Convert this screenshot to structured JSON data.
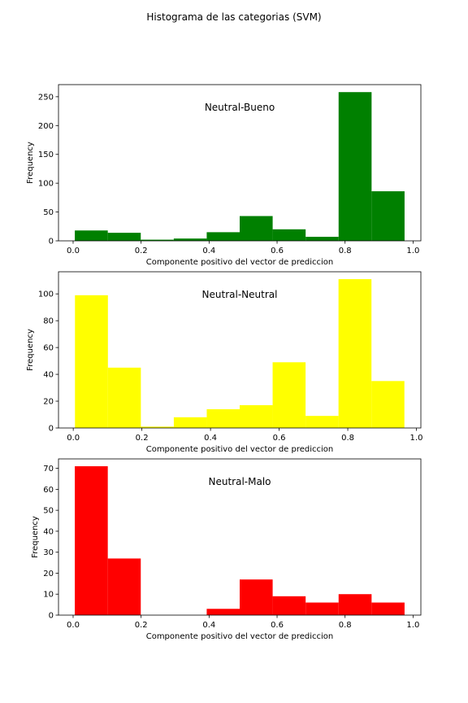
{
  "figure": {
    "suptitle": "Histograma de las categorias (SVM)"
  },
  "chart_data": [
    {
      "type": "bar",
      "title": "Neutral-Bueno",
      "xlabel": "Componente positivo del vector de prediccion",
      "ylabel": "Frequency",
      "color": "#008000",
      "bin_edges": [
        0.005,
        0.102,
        0.199,
        0.296,
        0.393,
        0.49,
        0.587,
        0.684,
        0.781,
        0.878,
        0.975
      ],
      "values": [
        18,
        14,
        2,
        4,
        15,
        43,
        20,
        7,
        258,
        86
      ],
      "xlim": [
        -0.043,
        1.023
      ],
      "ylim": [
        0,
        271
      ],
      "xticks": [
        0.0,
        0.2,
        0.4,
        0.6,
        0.8,
        1.0
      ],
      "xtick_labels": [
        "0.0",
        "0.2",
        "0.4",
        "0.6",
        "0.8",
        "1.0"
      ],
      "yticks": [
        0,
        50,
        100,
        150,
        200,
        250
      ],
      "ytick_labels": [
        "0",
        "50",
        "100",
        "150",
        "200",
        "250"
      ],
      "grid": false,
      "legend": "none"
    },
    {
      "type": "bar",
      "title": "Neutral-Neutral",
      "xlabel": "Componente positivo del vector de prediccion",
      "ylabel": "Frequency",
      "color": "#ffff00",
      "bin_edges": [
        0.005,
        0.101,
        0.197,
        0.293,
        0.389,
        0.485,
        0.581,
        0.677,
        0.773,
        0.869,
        0.965
      ],
      "values": [
        99,
        45,
        1,
        8,
        14,
        17,
        49,
        9,
        111,
        35
      ],
      "xlim": [
        -0.043,
        1.013
      ],
      "ylim": [
        0,
        116.5
      ],
      "xticks": [
        0.0,
        0.2,
        0.4,
        0.6,
        0.8,
        1.0
      ],
      "xtick_labels": [
        "0.0",
        "0.2",
        "0.4",
        "0.6",
        "0.8",
        "1.0"
      ],
      "yticks": [
        0,
        20,
        40,
        60,
        80,
        100
      ],
      "ytick_labels": [
        "0",
        "20",
        "40",
        "60",
        "80",
        "100"
      ],
      "grid": false,
      "legend": "none"
    },
    {
      "type": "bar",
      "title": "Neutral-Malo",
      "xlabel": "Componente positivo del vector de prediccion",
      "ylabel": "Frequency",
      "color": "#ff0000",
      "bin_edges": [
        0.005,
        0.102,
        0.199,
        0.296,
        0.393,
        0.49,
        0.587,
        0.684,
        0.781,
        0.878,
        0.975
      ],
      "values": [
        71,
        27,
        0,
        0,
        3,
        17,
        9,
        6,
        10,
        6
      ],
      "xlim": [
        -0.043,
        1.023
      ],
      "ylim": [
        0,
        74.5
      ],
      "xticks": [
        0.0,
        0.2,
        0.4,
        0.6,
        0.8,
        1.0
      ],
      "xtick_labels": [
        "0.0",
        "0.2",
        "0.4",
        "0.6",
        "0.8",
        "1.0"
      ],
      "yticks": [
        0,
        10,
        20,
        30,
        40,
        50,
        60,
        70
      ],
      "ytick_labels": [
        "0",
        "10",
        "20",
        "30",
        "40",
        "50",
        "60",
        "70"
      ],
      "grid": false,
      "legend": "none"
    }
  ]
}
